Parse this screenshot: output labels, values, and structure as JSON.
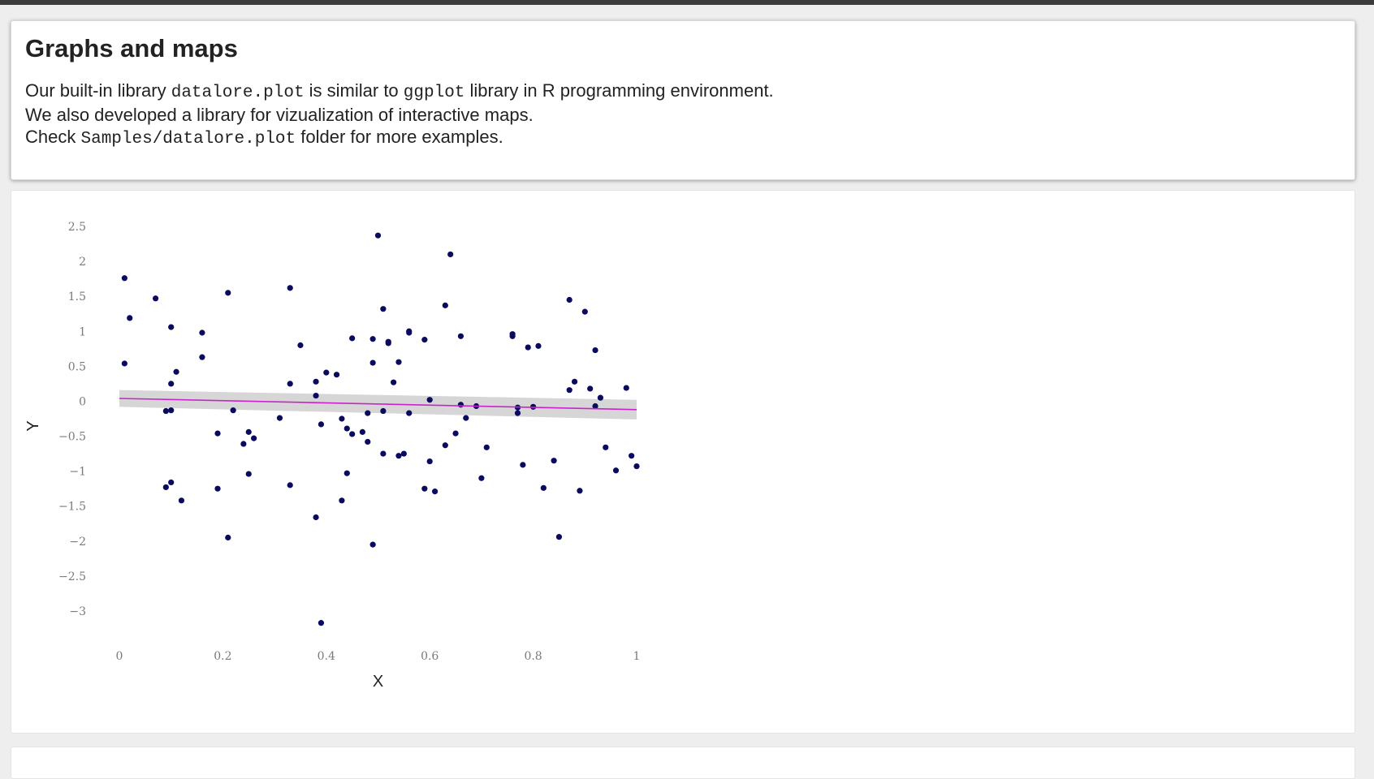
{
  "markdown_cell": {
    "title": "Graphs and maps",
    "line1": {
      "before": "Our built-in library ",
      "code1": "datalore.plot",
      "middle": " is similar to ",
      "code2": "ggplot",
      "after": " library in R programming environment."
    },
    "line2": "We also developed a library for vizualization of interactive maps.",
    "line3": {
      "before": "Check ",
      "code": "Samples/datalore.plot",
      "after": " folder for more examples."
    }
  },
  "colors": {
    "points": "#0a0a5e",
    "trend_line": "#cc22cc",
    "confidence_band": "#c8c8c8"
  },
  "chart_data": {
    "type": "scatter",
    "xlabel": "X",
    "ylabel": "Y",
    "xlim": [
      0,
      1
    ],
    "ylim": [
      -3.1,
      2.5
    ],
    "x_ticks": [
      0,
      0.2,
      0.4,
      0.6,
      0.8,
      1
    ],
    "x_tick_labels": [
      "0",
      "0.2",
      "0.4",
      "0.6",
      "0.8",
      "1"
    ],
    "y_ticks": [
      2.5,
      2,
      1.5,
      1,
      0.5,
      0,
      -0.5,
      -1,
      -1.5,
      -2,
      -2.5,
      -3
    ],
    "y_tick_labels": [
      "2.5",
      "2",
      "1.5",
      "1",
      "0.5",
      "0",
      "−0.5",
      "−1",
      "−1.5",
      "−2",
      "−2.5",
      "−3"
    ],
    "grid": false,
    "smooth": {
      "method": "linear",
      "x": [
        0,
        1
      ],
      "y": [
        0.04,
        -0.12
      ],
      "band_lower": [
        -0.08,
        -0.26
      ],
      "band_upper": [
        0.16,
        0.02
      ]
    },
    "points": [
      {
        "x": 0.01,
        "y": 1.76
      },
      {
        "x": 0.01,
        "y": 0.54
      },
      {
        "x": 0.02,
        "y": 1.19
      },
      {
        "x": 0.07,
        "y": 1.47
      },
      {
        "x": 0.09,
        "y": -0.14
      },
      {
        "x": 0.09,
        "y": -1.23
      },
      {
        "x": 0.1,
        "y": 1.06
      },
      {
        "x": 0.1,
        "y": 0.25
      },
      {
        "x": 0.1,
        "y": -0.13
      },
      {
        "x": 0.1,
        "y": -1.16
      },
      {
        "x": 0.11,
        "y": 0.42
      },
      {
        "x": 0.12,
        "y": -1.42
      },
      {
        "x": 0.16,
        "y": 0.63
      },
      {
        "x": 0.16,
        "y": 0.98
      },
      {
        "x": 0.19,
        "y": -0.46
      },
      {
        "x": 0.19,
        "y": -1.25
      },
      {
        "x": 0.21,
        "y": 1.55
      },
      {
        "x": 0.21,
        "y": -1.95
      },
      {
        "x": 0.22,
        "y": -0.13
      },
      {
        "x": 0.24,
        "y": -0.61
      },
      {
        "x": 0.25,
        "y": -0.44
      },
      {
        "x": 0.25,
        "y": -1.04
      },
      {
        "x": 0.26,
        "y": -0.53
      },
      {
        "x": 0.31,
        "y": -0.24
      },
      {
        "x": 0.33,
        "y": 0.25
      },
      {
        "x": 0.33,
        "y": -1.2
      },
      {
        "x": 0.33,
        "y": 1.62
      },
      {
        "x": 0.35,
        "y": 0.8
      },
      {
        "x": 0.38,
        "y": 0.28
      },
      {
        "x": 0.38,
        "y": 0.08
      },
      {
        "x": 0.38,
        "y": -1.66
      },
      {
        "x": 0.39,
        "y": -0.33
      },
      {
        "x": 0.39,
        "y": -3.17
      },
      {
        "x": 0.4,
        "y": 0.41
      },
      {
        "x": 0.42,
        "y": 0.38
      },
      {
        "x": 0.43,
        "y": -0.25
      },
      {
        "x": 0.43,
        "y": -1.42
      },
      {
        "x": 0.44,
        "y": -0.39
      },
      {
        "x": 0.44,
        "y": -1.03
      },
      {
        "x": 0.45,
        "y": -0.47
      },
      {
        "x": 0.45,
        "y": 0.9
      },
      {
        "x": 0.47,
        "y": -0.44
      },
      {
        "x": 0.48,
        "y": -0.58
      },
      {
        "x": 0.48,
        "y": -0.17
      },
      {
        "x": 0.49,
        "y": 0.89
      },
      {
        "x": 0.49,
        "y": 0.55
      },
      {
        "x": 0.49,
        "y": -2.05
      },
      {
        "x": 0.5,
        "y": 2.37
      },
      {
        "x": 0.51,
        "y": 1.32
      },
      {
        "x": 0.51,
        "y": -0.14
      },
      {
        "x": 0.51,
        "y": -0.75
      },
      {
        "x": 0.52,
        "y": 0.85
      },
      {
        "x": 0.52,
        "y": 0.83
      },
      {
        "x": 0.53,
        "y": 0.27
      },
      {
        "x": 0.54,
        "y": -0.78
      },
      {
        "x": 0.54,
        "y": 0.56
      },
      {
        "x": 0.55,
        "y": -0.75
      },
      {
        "x": 0.56,
        "y": 1.0
      },
      {
        "x": 0.56,
        "y": 0.98
      },
      {
        "x": 0.56,
        "y": -0.17
      },
      {
        "x": 0.59,
        "y": 0.88
      },
      {
        "x": 0.59,
        "y": -1.25
      },
      {
        "x": 0.6,
        "y": 0.02
      },
      {
        "x": 0.6,
        "y": -0.86
      },
      {
        "x": 0.61,
        "y": -1.29
      },
      {
        "x": 0.63,
        "y": 1.37
      },
      {
        "x": 0.63,
        "y": -0.63
      },
      {
        "x": 0.64,
        "y": 2.1
      },
      {
        "x": 0.65,
        "y": -0.46
      },
      {
        "x": 0.66,
        "y": -0.05
      },
      {
        "x": 0.66,
        "y": 0.93
      },
      {
        "x": 0.67,
        "y": -0.24
      },
      {
        "x": 0.69,
        "y": -0.07
      },
      {
        "x": 0.7,
        "y": -1.1
      },
      {
        "x": 0.71,
        "y": -0.66
      },
      {
        "x": 0.76,
        "y": 0.93
      },
      {
        "x": 0.76,
        "y": 0.96
      },
      {
        "x": 0.77,
        "y": -0.09
      },
      {
        "x": 0.77,
        "y": -0.17
      },
      {
        "x": 0.78,
        "y": -0.91
      },
      {
        "x": 0.79,
        "y": 0.77
      },
      {
        "x": 0.8,
        "y": -0.08
      },
      {
        "x": 0.81,
        "y": 0.79
      },
      {
        "x": 0.82,
        "y": -1.24
      },
      {
        "x": 0.84,
        "y": -0.85
      },
      {
        "x": 0.85,
        "y": -1.94
      },
      {
        "x": 0.87,
        "y": 1.45
      },
      {
        "x": 0.87,
        "y": 0.16
      },
      {
        "x": 0.88,
        "y": 0.28
      },
      {
        "x": 0.89,
        "y": -1.28
      },
      {
        "x": 0.9,
        "y": 1.28
      },
      {
        "x": 0.91,
        "y": 0.18
      },
      {
        "x": 0.92,
        "y": 0.73
      },
      {
        "x": 0.92,
        "y": -0.07
      },
      {
        "x": 0.93,
        "y": 0.05
      },
      {
        "x": 0.94,
        "y": -0.66
      },
      {
        "x": 0.96,
        "y": -0.99
      },
      {
        "x": 0.98,
        "y": 0.19
      },
      {
        "x": 0.99,
        "y": -0.78
      },
      {
        "x": 1.0,
        "y": -0.93
      }
    ]
  }
}
